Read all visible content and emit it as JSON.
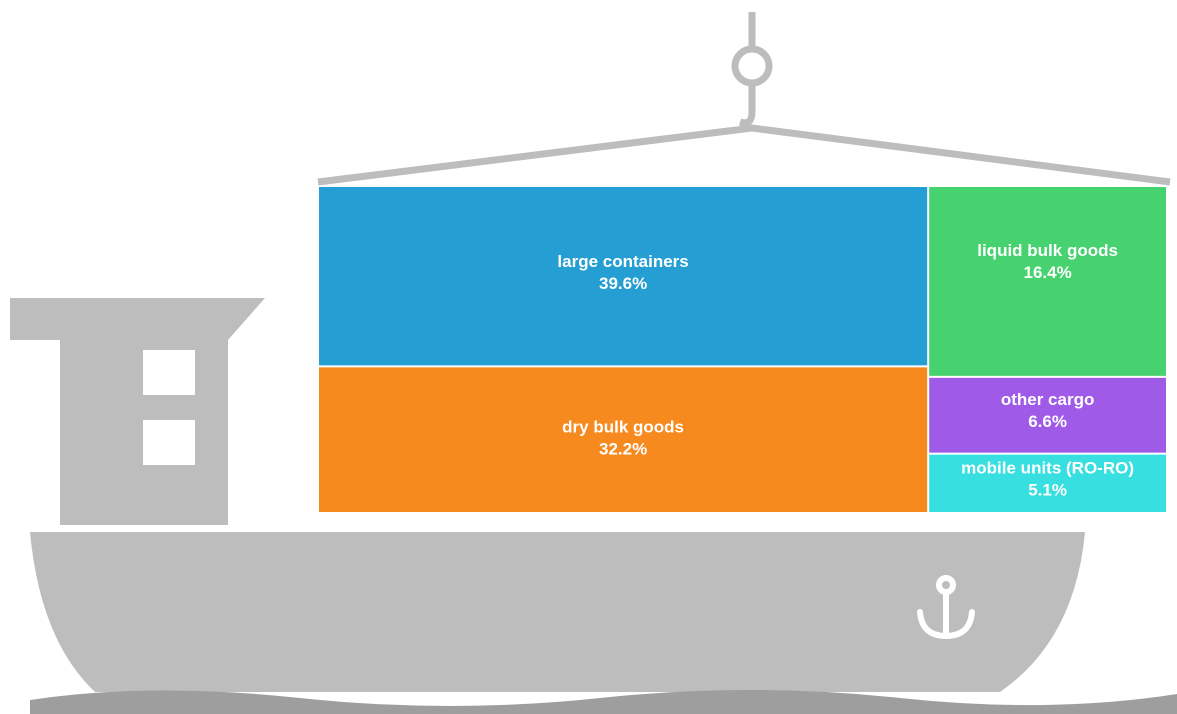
{
  "chart_data": {
    "type": "treemap",
    "categories": [
      "large containers",
      "dry bulk goods",
      "liquid bulk goods",
      "other cargo",
      "mobile units (RO-RO)"
    ],
    "values": [
      39.6,
      32.2,
      16.4,
      6.6,
      5.1
    ],
    "value_labels": [
      "39.6%",
      "32.2%",
      "16.4%",
      "6.6%",
      "5.1%"
    ],
    "colors": [
      "#259fd3",
      "#f68a1f",
      "#46d26f",
      "#9f5ae8",
      "#38dfe0"
    ]
  }
}
